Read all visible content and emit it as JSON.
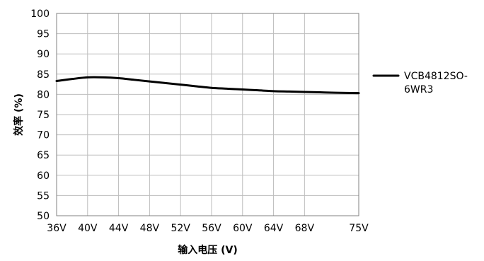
{
  "chart_data": {
    "type": "line",
    "title": "",
    "xlabel": "输入电压 (V)",
    "ylabel": "效率 (%)",
    "categories": [
      "36V",
      "40V",
      "44V",
      "48V",
      "52V",
      "56V",
      "60V",
      "64V",
      "68V",
      "75V"
    ],
    "x": [
      36,
      40,
      44,
      48,
      52,
      56,
      60,
      64,
      68,
      75
    ],
    "yticks": [
      "50",
      "55",
      "60",
      "65",
      "70",
      "75",
      "80",
      "85",
      "90",
      "95",
      "100"
    ],
    "ylim": [
      50,
      100
    ],
    "grid": true,
    "legend_position": "right",
    "series": [
      {
        "name": "VCB4812SO-6WR3",
        "color": "#000000",
        "x": [
          36,
          38,
          40,
          42,
          44,
          46,
          48,
          50,
          52,
          54,
          56,
          58,
          60,
          62,
          64,
          66,
          68,
          70,
          72,
          75
        ],
        "values": [
          83.3,
          83.8,
          84.2,
          84.2,
          84.0,
          83.6,
          83.2,
          82.8,
          82.4,
          82.0,
          81.6,
          81.4,
          81.2,
          81.0,
          80.8,
          80.7,
          80.6,
          80.5,
          80.4,
          80.3
        ]
      }
    ],
    "legend": {
      "entries": [
        {
          "line1": "VCB4812SO-",
          "line2": "6WR3"
        }
      ]
    }
  }
}
